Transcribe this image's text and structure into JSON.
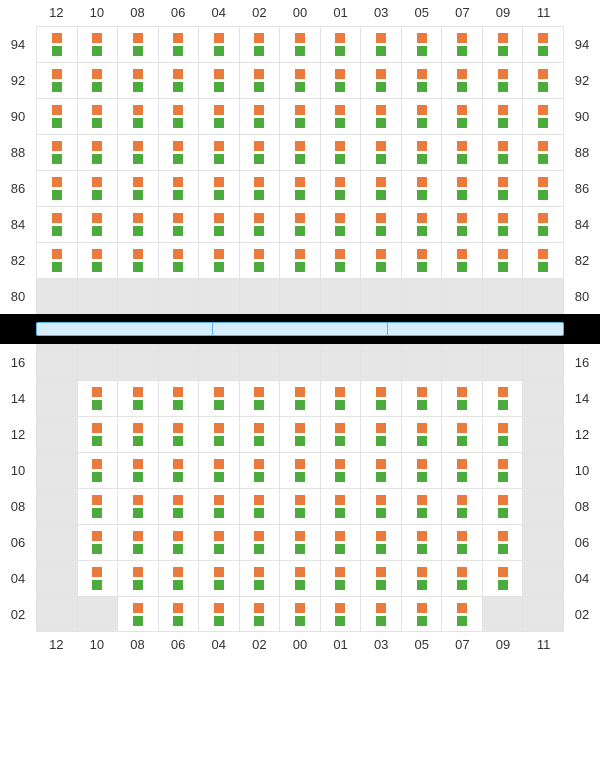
{
  "colors": {
    "top_marker": "#ea7b3c",
    "bottom_marker": "#4cab3d",
    "empty_cell": "#e6e6e6",
    "grid_line": "#e3e3e3",
    "bridge_bg": "#000000",
    "bridge_seg_fill": "#d6ecfb",
    "bridge_seg_border": "#55b5eb"
  },
  "columns": [
    "12",
    "10",
    "08",
    "06",
    "04",
    "02",
    "00",
    "01",
    "03",
    "05",
    "07",
    "09",
    "11"
  ],
  "top_section": {
    "show_header_top": true,
    "show_header_bottom": false,
    "rows": [
      {
        "label": "94",
        "cells": [
          1,
          1,
          1,
          1,
          1,
          1,
          1,
          1,
          1,
          1,
          1,
          1,
          1
        ]
      },
      {
        "label": "92",
        "cells": [
          1,
          1,
          1,
          1,
          1,
          1,
          1,
          1,
          1,
          1,
          1,
          1,
          1
        ]
      },
      {
        "label": "90",
        "cells": [
          1,
          1,
          1,
          1,
          1,
          1,
          1,
          1,
          1,
          1,
          1,
          1,
          1
        ]
      },
      {
        "label": "88",
        "cells": [
          1,
          1,
          1,
          1,
          1,
          1,
          1,
          1,
          1,
          1,
          1,
          1,
          1
        ]
      },
      {
        "label": "86",
        "cells": [
          1,
          1,
          1,
          1,
          1,
          1,
          1,
          1,
          1,
          1,
          1,
          1,
          1
        ]
      },
      {
        "label": "84",
        "cells": [
          1,
          1,
          1,
          1,
          1,
          1,
          1,
          1,
          1,
          1,
          1,
          1,
          1
        ]
      },
      {
        "label": "82",
        "cells": [
          1,
          1,
          1,
          1,
          1,
          1,
          1,
          1,
          1,
          1,
          1,
          1,
          1
        ]
      },
      {
        "label": "80",
        "cells": [
          0,
          0,
          0,
          0,
          0,
          0,
          0,
          0,
          0,
          0,
          0,
          0,
          0
        ]
      }
    ]
  },
  "bridge": {
    "segments": 3
  },
  "bottom_section": {
    "show_header_top": false,
    "show_header_bottom": true,
    "rows": [
      {
        "label": "16",
        "cells": [
          0,
          0,
          0,
          0,
          0,
          0,
          0,
          0,
          0,
          0,
          0,
          0,
          0
        ]
      },
      {
        "label": "14",
        "cells": [
          0,
          1,
          1,
          1,
          1,
          1,
          1,
          1,
          1,
          1,
          1,
          1,
          0
        ]
      },
      {
        "label": "12",
        "cells": [
          0,
          1,
          1,
          1,
          1,
          1,
          1,
          1,
          1,
          1,
          1,
          1,
          0
        ]
      },
      {
        "label": "10",
        "cells": [
          0,
          1,
          1,
          1,
          1,
          1,
          1,
          1,
          1,
          1,
          1,
          1,
          0
        ]
      },
      {
        "label": "08",
        "cells": [
          0,
          1,
          1,
          1,
          1,
          1,
          1,
          1,
          1,
          1,
          1,
          1,
          0
        ]
      },
      {
        "label": "06",
        "cells": [
          0,
          1,
          1,
          1,
          1,
          1,
          1,
          1,
          1,
          1,
          1,
          1,
          0
        ]
      },
      {
        "label": "04",
        "cells": [
          0,
          1,
          1,
          1,
          1,
          1,
          1,
          1,
          1,
          1,
          1,
          1,
          0
        ]
      },
      {
        "label": "02",
        "cells": [
          0,
          0,
          1,
          1,
          1,
          1,
          1,
          1,
          1,
          1,
          1,
          0,
          0
        ]
      }
    ]
  }
}
